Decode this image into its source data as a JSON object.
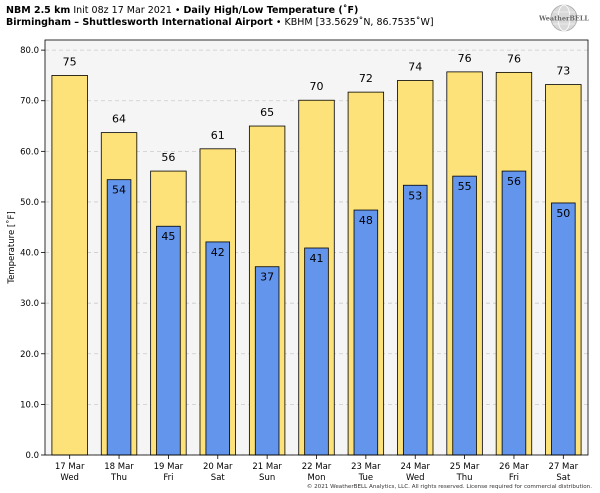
{
  "header": {
    "model": "NBM 2.5 km",
    "init": "Init 08z 17 Mar 2021",
    "sep1": "•",
    "product": "Daily High/Low Temperature (˚F)",
    "location": "Birmingham – Shuttlesworth International Airport",
    "sep2": "•",
    "station": "KBHM [33.5629˚N, 86.7535˚W]"
  },
  "logo": {
    "text": "WeatherBELL",
    "icon": "globe-logo"
  },
  "copyright": "© 2021 WeatherBELL Analytics, LLC. All rights reserved. License required for commercial distribution.",
  "colors": {
    "high_fill": "#fde27a",
    "low_fill": "#6495ed",
    "plot_bg": "#f5f5f5",
    "grid": "#cccccc"
  },
  "chart_data": {
    "type": "bar",
    "title": "Daily High/Low Temperature (˚F)",
    "ylabel": "Temperature [˚F]",
    "xlabel": "",
    "ylim": [
      0,
      82
    ],
    "yticks": [
      "0.0",
      "10.0",
      "20.0",
      "30.0",
      "40.0",
      "50.0",
      "60.0",
      "70.0",
      "80.0"
    ],
    "grid": true,
    "categories": [
      [
        "17 Mar",
        "Wed"
      ],
      [
        "18 Mar",
        "Thu"
      ],
      [
        "19 Mar",
        "Fri"
      ],
      [
        "20 Mar",
        "Sat"
      ],
      [
        "21 Mar",
        "Sun"
      ],
      [
        "22 Mar",
        "Mon"
      ],
      [
        "23 Mar",
        "Tue"
      ],
      [
        "24 Mar",
        "Wed"
      ],
      [
        "25 Mar",
        "Thu"
      ],
      [
        "26 Mar",
        "Fri"
      ],
      [
        "27 Mar",
        "Sat"
      ]
    ],
    "series": [
      {
        "values": [
          75,
          63.7,
          56.1,
          60.5,
          65,
          70.1,
          71.7,
          74,
          75.7,
          75.6,
          73.2
        ],
        "labels": [
          "75",
          "64",
          "56",
          "61",
          "65",
          "70",
          "72",
          "74",
          "76",
          "76",
          "73"
        ]
      },
      {
        "values": [
          null,
          54.4,
          45.2,
          42.1,
          37.2,
          40.9,
          48.4,
          53.3,
          55.1,
          56.1,
          49.8
        ],
        "labels": [
          "",
          "54",
          "45",
          "42",
          "37",
          "41",
          "48",
          "53",
          "55",
          "56",
          "50"
        ]
      }
    ]
  }
}
